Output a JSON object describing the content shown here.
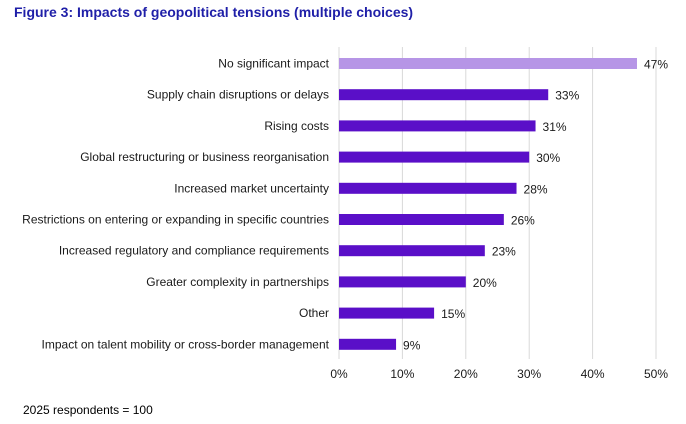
{
  "header": {
    "title": "Figure 3: Impacts of geopolitical tensions (multiple choices)"
  },
  "footnote": "2025 respondents = 100",
  "colors": {
    "highlight_bar": "#b695e6",
    "bar": "#5a0fc8",
    "grid": "#d9d9d9",
    "title": "#1f1fa8"
  },
  "chart_data": {
    "type": "bar",
    "orientation": "horizontal",
    "title": "Figure 3: Impacts of geopolitical tensions (multiple choices)",
    "categories": [
      "No significant impact",
      "Supply chain disruptions or delays",
      "Rising costs",
      "Global restructuring or business reorganisation",
      "Increased market uncertainty",
      "Restrictions on entering or expanding in specific countries",
      "Increased regulatory and compliance requirements",
      "Greater complexity in partnerships",
      "Other",
      "Impact on talent mobility or cross-border management"
    ],
    "values": [
      47,
      33,
      31,
      30,
      28,
      26,
      23,
      20,
      15,
      9
    ],
    "value_labels": [
      "47%",
      "33%",
      "31%",
      "30%",
      "28%",
      "26%",
      "23%",
      "20%",
      "15%",
      "9%"
    ],
    "highlighted_category": "No significant impact",
    "xlim": [
      0,
      50
    ],
    "xticks": [
      0,
      10,
      20,
      30,
      40,
      50
    ],
    "xtick_labels": [
      "0%",
      "10%",
      "20%",
      "30%",
      "40%",
      "50%"
    ],
    "xlabel": "",
    "ylabel": "",
    "grid": "vertical",
    "legend": "none"
  }
}
